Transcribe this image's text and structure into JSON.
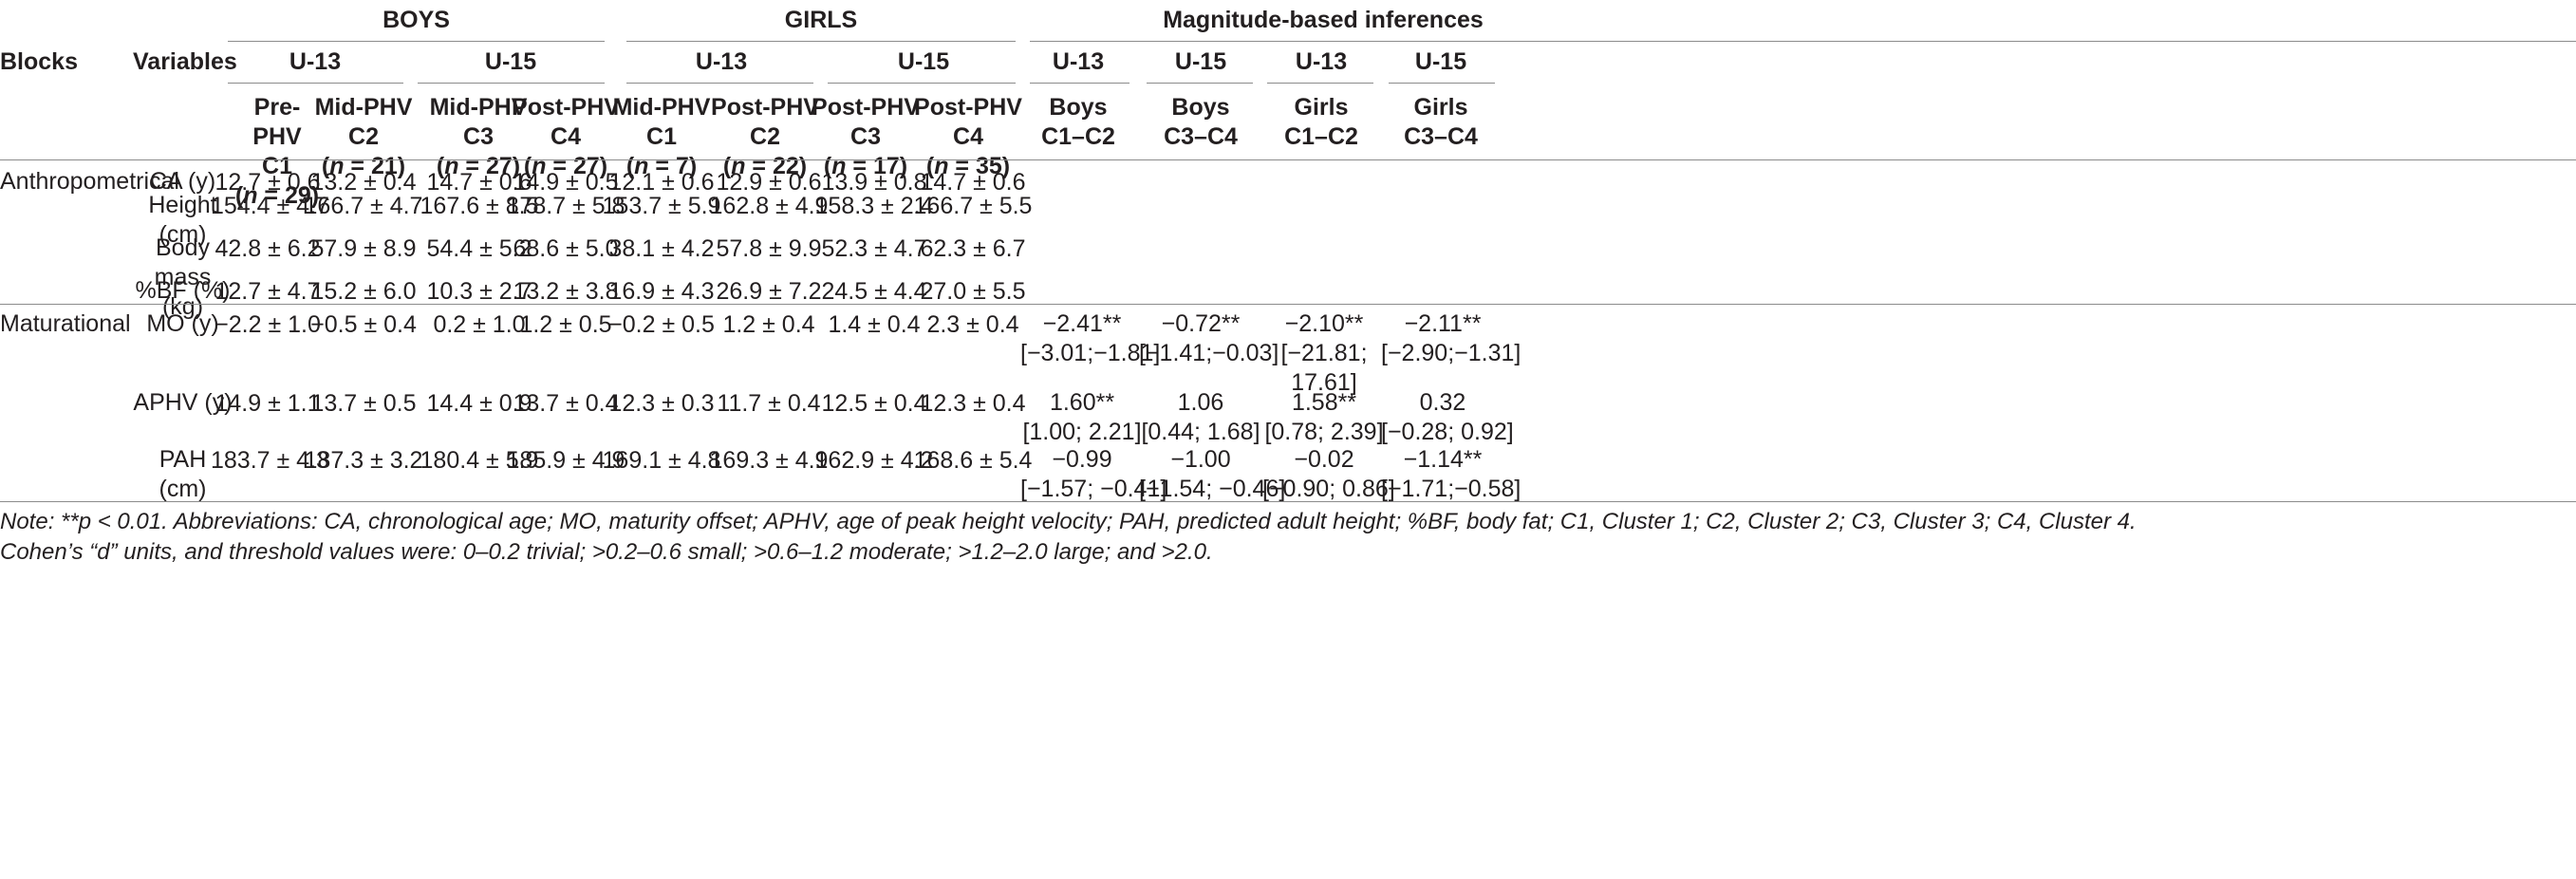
{
  "headers": {
    "blocks": "Blocks",
    "variables": "Variables",
    "boys": "BOYS",
    "girls": "GIRLS",
    "mbi": "Magnitude-based inferences",
    "u13": "U-13",
    "u15": "U-15"
  },
  "clusters": [
    {
      "phase": "Pre-PHV",
      "code": "C1",
      "n": "29"
    },
    {
      "phase": "Mid-PHV",
      "code": "C2",
      "n": "21"
    },
    {
      "phase": "Mid-PHV",
      "code": "C3",
      "n": "27"
    },
    {
      "phase": "Post-PHV",
      "code": "C4",
      "n": "27"
    },
    {
      "phase": "Mid-PHV",
      "code": "C1",
      "n": "7"
    },
    {
      "phase": "Post-PHV",
      "code": "C2",
      "n": "22"
    },
    {
      "phase": "Post-PHV",
      "code": "C3",
      "n": "17"
    },
    {
      "phase": "Post-PHV",
      "code": "C4",
      "n": "35"
    }
  ],
  "n_prefix": "(",
  "n_label": "n",
  "n_eq": " = ",
  "n_suffix": ")",
  "mbi_cols": [
    {
      "group": "Boys",
      "comp": "C1–C2"
    },
    {
      "group": "Boys",
      "comp": "C3–C4"
    },
    {
      "group": "Girls",
      "comp": "C1–C2"
    },
    {
      "group": "Girls",
      "comp": "C3–C4"
    }
  ],
  "blocks": [
    "Anthropometrical",
    "Maturational"
  ],
  "rows": [
    {
      "var": "CA (y)",
      "values": [
        "12.7 ± 0.6",
        "13.2 ± 0.4",
        "14.7 ± 0.6",
        "14.9 ± 0.5",
        "12.1 ± 0.6",
        "12.9 ± 0.6",
        "13.9 ± 0.8",
        "14.7 ± 0.6"
      ]
    },
    {
      "var": "Height (cm)",
      "var_l1": "Height",
      "var_l2": "(cm)",
      "values": [
        "154.4 ± 4.7",
        "166.7 ± 4.7",
        "167.6 ± 8.5",
        "178.7 ± 5.8",
        "153.7 ± 5.9",
        "162.8 ± 4.9",
        "158.3 ± 2.4",
        "166.7 ± 5.5"
      ]
    },
    {
      "var": "Body mass (kg)",
      "var_l1": "Body",
      "var_l2": "mass (kg)",
      "values": [
        "42.8 ± 6.2",
        "57.9 ± 8.9",
        "54.4 ± 5.2",
        "68.6 ± 5.0",
        "38.1 ± 4.2",
        "57.8 ± 9.9",
        "52.3 ± 4.7",
        "62.3 ± 6.7"
      ]
    },
    {
      "var": "%BF (%)",
      "values": [
        "12.7 ± 4.7",
        "15.2 ± 6.0",
        "10.3 ± 2.7",
        "13.2 ± 3.8",
        "16.9 ± 4.3",
        "26.9 ± 7.2",
        "24.5 ± 4.4",
        "27.0 ± 5.5"
      ]
    },
    {
      "var": "MO (y)",
      "values": [
        "−2.2 ± 1.0",
        "−0.5 ± 0.4",
        "0.2 ± 1.0",
        "1.2 ± 0.5",
        "−0.2 ± 0.5",
        "1.2 ± 0.4",
        "1.4 ± 0.4",
        "2.3 ± 0.4"
      ],
      "mbi": [
        [
          "−2.41**",
          "[−3.01;−1.81]"
        ],
        [
          "−0.72**",
          "[−1.41;−0.03]"
        ],
        [
          "−2.10**",
          "[−21.81;",
          "17.61]"
        ],
        [
          "−2.11**",
          "[−2.90;−1.31]"
        ]
      ]
    },
    {
      "var": "APHV (y)",
      "values": [
        "14.9 ± 1.1",
        "13.7 ± 0.5",
        "14.4 ± 0.9",
        "13.7 ± 0.4",
        "12.3 ± 0.3",
        "11.7 ± 0.4",
        "12.5 ± 0.4",
        "12.3 ± 0.4"
      ],
      "mbi": [
        [
          "1.60**",
          "[1.00; 2.21]"
        ],
        [
          "1.06",
          "[0.44; 1.68]"
        ],
        [
          "1.58**",
          "[0.78; 2.39]"
        ],
        [
          "0.32",
          "[−0.28; 0.92]"
        ]
      ]
    },
    {
      "var": "PAH (cm)",
      "values": [
        "183.7 ± 4.3",
        "187.3 ± 3.2",
        "180.4 ± 5.9",
        "185.9 ± 4.9",
        "169.1 ± 4.8",
        "169.3 ± 4.9",
        "162.9 ± 4.2",
        "168.6 ± 5.4"
      ],
      "mbi": [
        [
          "−0.99",
          "[−1.57; −0.41]"
        ],
        [
          "−1.00",
          "[−1.54; −0.46]"
        ],
        [
          "−0.02",
          "[−0.90; 0.86]"
        ],
        [
          "−1.14**",
          "[−1.71;−0.58]"
        ]
      ]
    }
  ],
  "note": {
    "line1": "Note: **p < 0.01. Abbreviations: CA, chronological age; MO, maturity offset; APHV, age of peak height velocity; PAH, predicted adult height; %BF, body fat; C1, Cluster 1; C2, Cluster 2; C3, Cluster 3; C4, Cluster 4.",
    "line2": "Cohen’s “d” units, and threshold values were: 0–0.2 trivial; >0.2–0.6 small; >0.6–1.2 moderate; >1.2–2.0 large; and >2.0."
  }
}
